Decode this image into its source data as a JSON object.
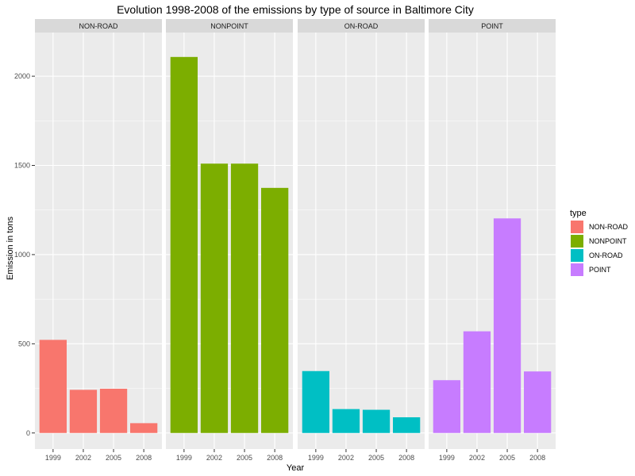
{
  "chart_data": {
    "type": "bar",
    "title": "Evolution 1998-2008 of the emissions by type of source in Baltimore City",
    "xlabel": "Year",
    "ylabel": "Emission in tons",
    "categories": [
      "1999",
      "2002",
      "2005",
      "2008"
    ],
    "ylim": [
      -90,
      2245
    ],
    "yticks": [
      0,
      500,
      1000,
      1500,
      2000
    ],
    "grid": true,
    "facet_by": "type",
    "legend": {
      "title": "type",
      "position": "right",
      "entries": [
        "NON-ROAD",
        "NONPOINT",
        "ON-ROAD",
        "POINT"
      ]
    },
    "series": [
      {
        "name": "NON-ROAD",
        "color": "#F8766D",
        "values": [
          522,
          242,
          248,
          55
        ]
      },
      {
        "name": "NONPOINT",
        "color": "#7CAE00",
        "values": [
          2108,
          1510,
          1510,
          1374
        ]
      },
      {
        "name": "ON-ROAD",
        "color": "#00BFC4",
        "values": [
          347,
          134,
          130,
          88
        ]
      },
      {
        "name": "POINT",
        "color": "#C77CFF",
        "values": [
          296,
          570,
          1203,
          345
        ]
      }
    ]
  }
}
